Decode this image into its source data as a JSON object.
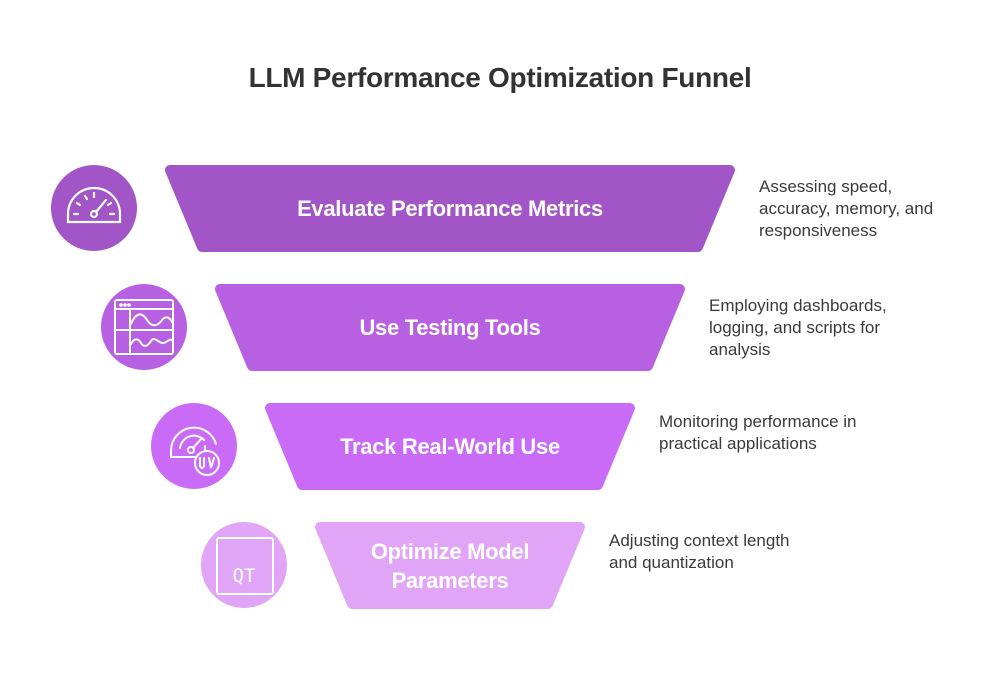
{
  "title": "LLM Performance Optimization Funnel",
  "stages": [
    {
      "label": "Evaluate Performance Metrics",
      "description": "Assessing speed, accuracy, memory, and responsiveness",
      "icon": "speedometer-icon",
      "color": "#A155C7"
    },
    {
      "label": "Use Testing Tools",
      "description": "Employing dashboards, logging, and scripts for analysis",
      "icon": "dashboard-chart-icon",
      "color": "#B860E2"
    },
    {
      "label": "Track Real-World Use",
      "description": "Monitoring performance in practical applications",
      "icon": "gauge-uv-icon",
      "color": "#CA6BF7"
    },
    {
      "label": "Optimize Model Parameters",
      "description": "Adjusting context length and quantization",
      "icon": "qt-box-icon",
      "color": "#E0A5F7",
      "icon_text": "QT"
    }
  ]
}
